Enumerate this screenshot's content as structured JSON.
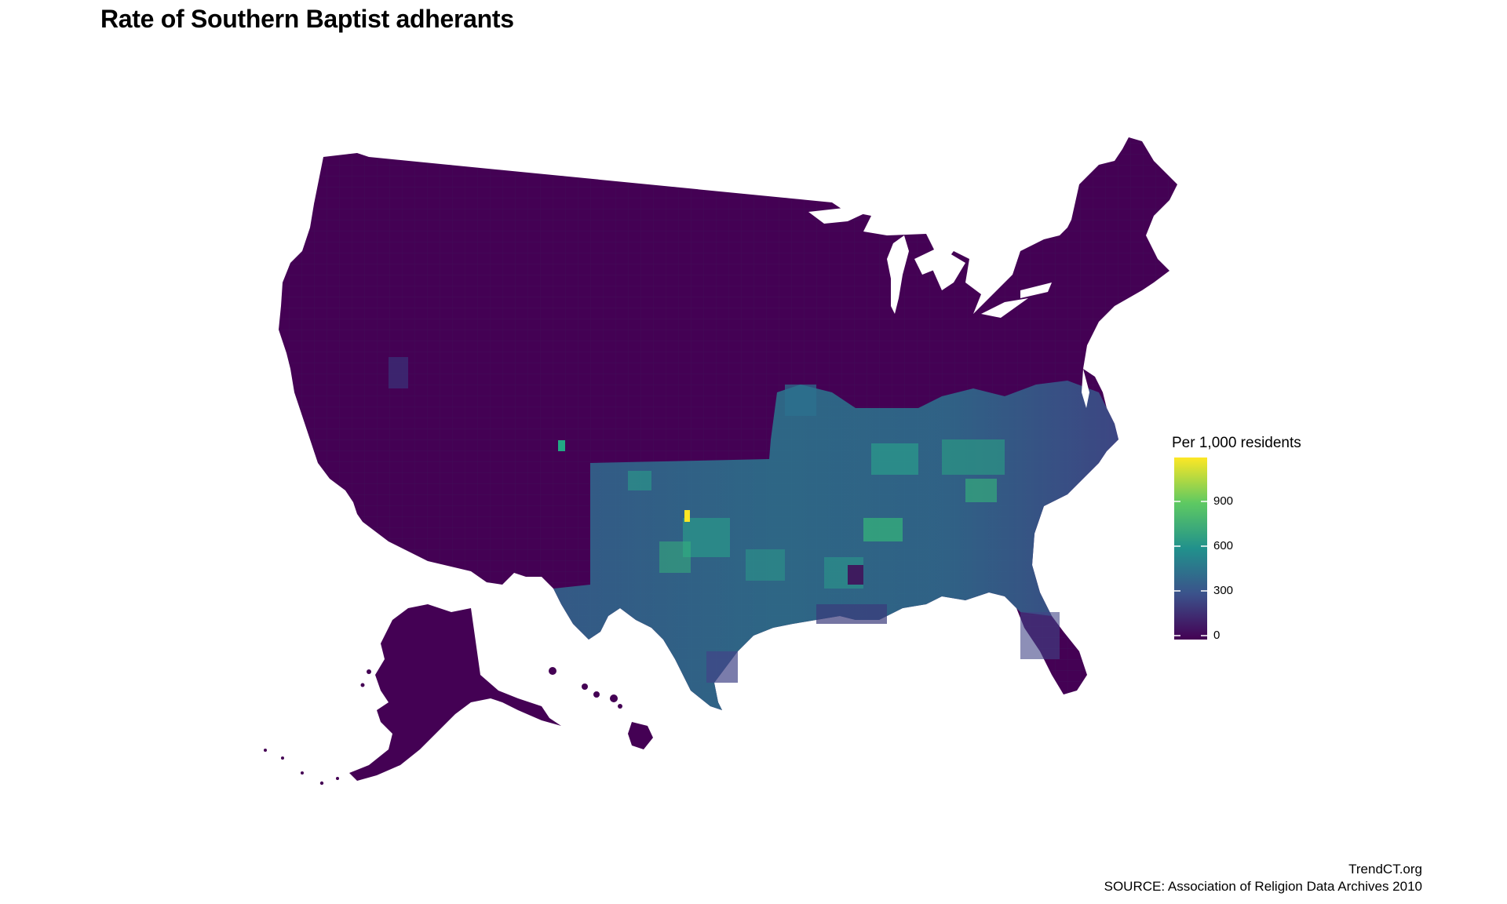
{
  "title": "Rate of Southern Baptist adherants",
  "legend": {
    "title": "Per 1,000 residents",
    "ticks": [
      "900",
      "600",
      "300",
      "0"
    ],
    "scale_min": 0,
    "scale_max": 1180,
    "colors": [
      "#440154",
      "#3b528b",
      "#21918c",
      "#5ec962",
      "#fde725"
    ]
  },
  "caption": {
    "line1": "TrendCT.org",
    "line2": "SOURCE: Association of Religion Data Archives 2010"
  },
  "chart_data": {
    "type": "choropleth",
    "title": "Rate of Southern Baptist adherants",
    "legend_title": "Per 1,000 residents",
    "color_scale": "viridis",
    "range": [
      0,
      1180
    ],
    "tick_values": [
      0,
      300,
      600,
      900
    ],
    "legend_position": "right",
    "approx_values": [
      {
        "area": "Northern and western counties",
        "value": 20
      },
      {
        "area": "Texas / Oklahoma counties",
        "value": 400
      },
      {
        "area": "Kentucky / Tennessee counties",
        "value": 600
      },
      {
        "area": "Georgia / Alabama / Carolinas counties",
        "value": 450
      },
      {
        "area": "Highest county (Oklahoma panhandle area)",
        "value": 1150
      }
    ]
  }
}
